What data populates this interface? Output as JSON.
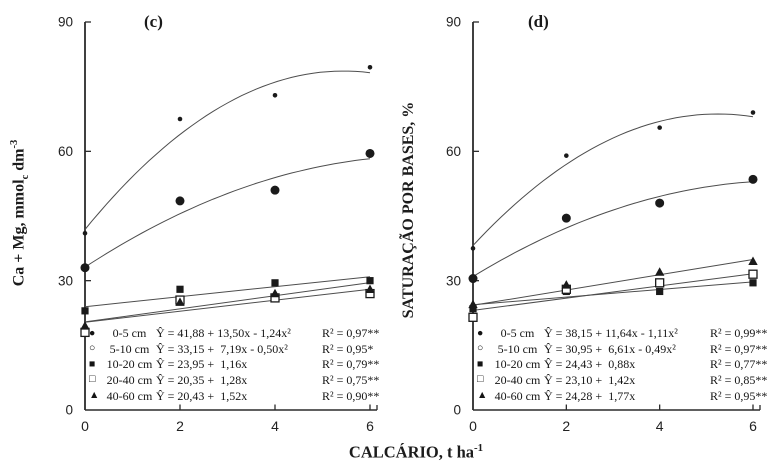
{
  "figure": {
    "xlabel_parts": [
      {
        "t": "CALCÁRIO, t ha"
      },
      {
        "sup": "-1"
      }
    ],
    "ink_color": "#1a1a1a",
    "curve_color": "#4d4d4d",
    "background": "#ffffff"
  },
  "chart_data": [
    {
      "type": "scatter",
      "panel_label": "(c)",
      "ylabel_parts": [
        {
          "t": "Ca + Mg, mmol"
        },
        {
          "sub": "c"
        },
        {
          "t": " dm"
        },
        {
          "sup": "-3"
        }
      ],
      "xlabel": "CALCÁRIO, t ha⁻¹",
      "x_ticks": [
        0,
        2,
        4,
        6
      ],
      "y_ticks": [
        0,
        30,
        60,
        90
      ],
      "xlim": [
        0,
        6
      ],
      "ylim": [
        0,
        90
      ],
      "grid": false,
      "legend_position": "bottom-left-inside",
      "series": [
        {
          "depth": "0-5 cm",
          "marker": "circle-filled-small",
          "fit": "quadratic",
          "coef": [
            41.88,
            13.5,
            -1.24
          ],
          "x": [
            0,
            2,
            4,
            6
          ],
          "y": [
            41,
            67.5,
            73,
            79.5
          ],
          "legend_marker": "●",
          "equation": "Ŷ = 41,88 + 13,50x - 1,24x²",
          "r2": "R² = 0,97**"
        },
        {
          "depth": "5-10 cm",
          "marker": "circle-filled-large",
          "fit": "quadratic",
          "coef": [
            33.15,
            7.19,
            -0.5
          ],
          "x": [
            0,
            2,
            4,
            6
          ],
          "y": [
            33,
            48.5,
            51,
            59.5
          ],
          "legend_marker": "○",
          "equation": "Ŷ = 33,15 +  7,19x - 0,50x²",
          "r2": "R² = 0,95*"
        },
        {
          "depth": "10-20 cm",
          "marker": "square-filled",
          "fit": "linear",
          "coef": [
            23.95,
            1.16
          ],
          "x": [
            0,
            2,
            4,
            6
          ],
          "y": [
            23,
            28,
            29.5,
            30
          ],
          "legend_marker": "■",
          "equation": "Ŷ = 23,95 +  1,16x",
          "r2": "R² = 0,79**"
        },
        {
          "depth": "20-40 cm",
          "marker": "square-open",
          "fit": "linear",
          "coef": [
            20.35,
            1.28
          ],
          "x": [
            0,
            2,
            4,
            6
          ],
          "y": [
            18,
            25.5,
            26,
            27
          ],
          "legend_marker": "□",
          "equation": "Ŷ = 20,35 +  1,28x",
          "r2": "R² = 0,75**"
        },
        {
          "depth": "40-60 cm",
          "marker": "triangle-filled",
          "fit": "linear",
          "coef": [
            20.43,
            1.52
          ],
          "x": [
            0,
            2,
            4,
            6
          ],
          "y": [
            19.5,
            25,
            27,
            28
          ],
          "legend_marker": "▲",
          "equation": "Ŷ = 20,43 +  1,52x",
          "r2": "R² = 0,90**"
        }
      ]
    },
    {
      "type": "scatter",
      "panel_label": "(d)",
      "ylabel_parts": [
        {
          "t": "SATURAÇÃO POR BASES, %"
        }
      ],
      "xlabel": "CALCÁRIO, t ha⁻¹",
      "x_ticks": [
        0,
        2,
        4,
        6
      ],
      "y_ticks": [
        0,
        30,
        60,
        90
      ],
      "xlim": [
        0,
        6
      ],
      "ylim": [
        0,
        90
      ],
      "grid": false,
      "legend_position": "bottom-left-inside",
      "series": [
        {
          "depth": "0-5 cm",
          "marker": "circle-filled-small",
          "fit": "quadratic",
          "coef": [
            38.15,
            11.64,
            -1.11
          ],
          "x": [
            0,
            2,
            4,
            6
          ],
          "y": [
            37.5,
            59,
            65.5,
            69
          ],
          "legend_marker": "●",
          "equation": "Ŷ = 38,15 + 11,64x - 1,11x²",
          "r2": "R² = 0,99**"
        },
        {
          "depth": "5-10 cm",
          "marker": "circle-filled-large",
          "fit": "quadratic",
          "coef": [
            30.95,
            6.61,
            -0.49
          ],
          "x": [
            0,
            2,
            4,
            6
          ],
          "y": [
            30.5,
            44.5,
            48,
            53.5
          ],
          "legend_marker": "○",
          "equation": "Ŷ = 30,95 +  6,61x - 0,49x²",
          "r2": "R² = 0,97**"
        },
        {
          "depth": "10-20 cm",
          "marker": "square-filled",
          "fit": "linear",
          "coef": [
            24.43,
            0.88
          ],
          "x": [
            0,
            2,
            4,
            6
          ],
          "y": [
            23.5,
            27.5,
            27.5,
            29.5
          ],
          "legend_marker": "■",
          "equation": "Ŷ = 24,43 +  0,88x",
          "r2": "R² = 0,77**"
        },
        {
          "depth": "20-40 cm",
          "marker": "square-open",
          "fit": "linear",
          "coef": [
            23.1,
            1.42
          ],
          "x": [
            0,
            2,
            4,
            6
          ],
          "y": [
            21.5,
            28,
            29.5,
            31.5
          ],
          "legend_marker": "□",
          "equation": "Ŷ = 23,10 +  1,42x",
          "r2": "R² = 0,85**"
        },
        {
          "depth": "40-60 cm",
          "marker": "triangle-filled",
          "fit": "linear",
          "coef": [
            24.28,
            1.77
          ],
          "x": [
            0,
            2,
            4,
            6
          ],
          "y": [
            24.5,
            29,
            32,
            34.5
          ],
          "legend_marker": "▲",
          "equation": "Ŷ = 24,28 +  1,77x",
          "r2": "R² = 0,95**"
        }
      ]
    }
  ]
}
